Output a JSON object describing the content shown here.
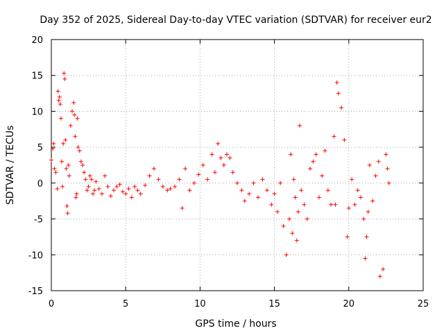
{
  "chart_data": {
    "type": "scatter",
    "title": "Day 352 of 2025, Sidereal Day-to-day VTEC variation (SDTVAR) for receiver eur2",
    "xlabel": "GPS time / hours",
    "ylabel": "SDTVAR / TECUs",
    "xlim": [
      0,
      25
    ],
    "ylim": [
      -15,
      20
    ],
    "x_ticks": [
      0,
      5,
      10,
      15,
      20,
      25
    ],
    "y_ticks": [
      -15,
      -10,
      -5,
      0,
      5,
      10,
      15,
      20
    ],
    "grid": true,
    "marker": "+",
    "color": "#ff0000",
    "series": [
      {
        "name": "SDTVAR",
        "x": [
          0.0,
          0.1,
          0.15,
          0.2,
          0.3,
          0.4,
          0.45,
          0.5,
          0.55,
          0.6,
          0.65,
          0.7,
          0.75,
          0.8,
          0.85,
          0.9,
          0.95,
          1.0,
          1.05,
          1.1,
          1.15,
          1.2,
          1.3,
          1.4,
          1.5,
          1.55,
          1.6,
          1.65,
          1.7,
          1.75,
          1.8,
          1.9,
          2.0,
          2.1,
          2.2,
          2.3,
          2.4,
          2.5,
          2.6,
          2.7,
          2.8,
          2.9,
          3.0,
          3.2,
          3.4,
          3.6,
          3.8,
          4.0,
          4.2,
          4.4,
          4.6,
          4.8,
          5.0,
          5.2,
          5.4,
          5.6,
          5.8,
          6.0,
          6.3,
          6.6,
          6.9,
          7.2,
          7.5,
          7.8,
          8.0,
          8.3,
          8.6,
          8.8,
          9.0,
          9.3,
          9.6,
          9.9,
          10.2,
          10.5,
          10.8,
          11.0,
          11.2,
          11.4,
          11.6,
          11.8,
          12.0,
          12.2,
          12.5,
          12.8,
          13.0,
          13.3,
          13.6,
          13.9,
          14.2,
          14.5,
          14.8,
          15.0,
          15.2,
          15.4,
          15.6,
          15.8,
          16.0,
          16.1,
          16.2,
          16.3,
          16.4,
          16.5,
          16.6,
          16.7,
          16.8,
          17.0,
          17.2,
          17.4,
          17.6,
          17.8,
          18.0,
          18.2,
          18.4,
          18.6,
          18.8,
          19.0,
          19.1,
          19.2,
          19.3,
          19.5,
          19.7,
          19.9,
          20.0,
          20.2,
          20.4,
          20.6,
          20.8,
          21.0,
          21.1,
          21.2,
          21.3,
          21.4,
          21.6,
          21.8,
          22.0,
          22.1,
          22.3,
          22.5,
          22.6,
          22.7
        ],
        "y": [
          3.2,
          4.8,
          5.5,
          2.0,
          1.5,
          -0.8,
          12.8,
          11.5,
          12.0,
          11.0,
          9.0,
          3.0,
          -0.5,
          5.5,
          15.3,
          14.5,
          6.0,
          2.0,
          -3.2,
          -4.2,
          2.5,
          1.0,
          8.0,
          10.0,
          11.2,
          9.5,
          6.5,
          -2.0,
          -1.5,
          9.0,
          5.0,
          4.5,
          3.0,
          2.5,
          1.5,
          0.5,
          -1.0,
          -0.5,
          1.0,
          0.5,
          -1.5,
          -1.0,
          0.2,
          -0.8,
          -1.5,
          1.0,
          -0.5,
          -1.8,
          -1.0,
          -0.5,
          -0.2,
          -1.2,
          -1.5,
          -0.8,
          -2.0,
          -0.5,
          -1.0,
          -1.5,
          -0.3,
          1.0,
          2.0,
          0.5,
          -0.5,
          -1.0,
          -0.8,
          -0.5,
          0.5,
          -3.5,
          2.0,
          -1.0,
          0.0,
          1.2,
          2.5,
          0.5,
          4.0,
          1.5,
          5.5,
          3.5,
          2.5,
          4.0,
          3.5,
          1.5,
          0.0,
          -1.0,
          -2.5,
          -1.5,
          0.0,
          -2.0,
          0.5,
          -1.0,
          -3.0,
          -1.5,
          -4.0,
          0.0,
          -6.0,
          -10.0,
          -5.0,
          4.0,
          -7.0,
          0.5,
          -2.0,
          -8.0,
          -4.0,
          8.0,
          -1.0,
          -3.0,
          -5.0,
          2.0,
          3.0,
          4.0,
          -2.0,
          1.0,
          4.5,
          -1.0,
          -3.0,
          6.5,
          -3.0,
          14.0,
          12.5,
          10.5,
          6.0,
          -7.5,
          -3.5,
          0.5,
          -3.0,
          -1.0,
          -2.0,
          -5.0,
          -10.5,
          -7.5,
          -4.0,
          2.5,
          -2.5,
          1.0,
          3.0,
          -13.0,
          -12.0,
          4.0,
          2.0,
          0.0
        ]
      }
    ]
  }
}
